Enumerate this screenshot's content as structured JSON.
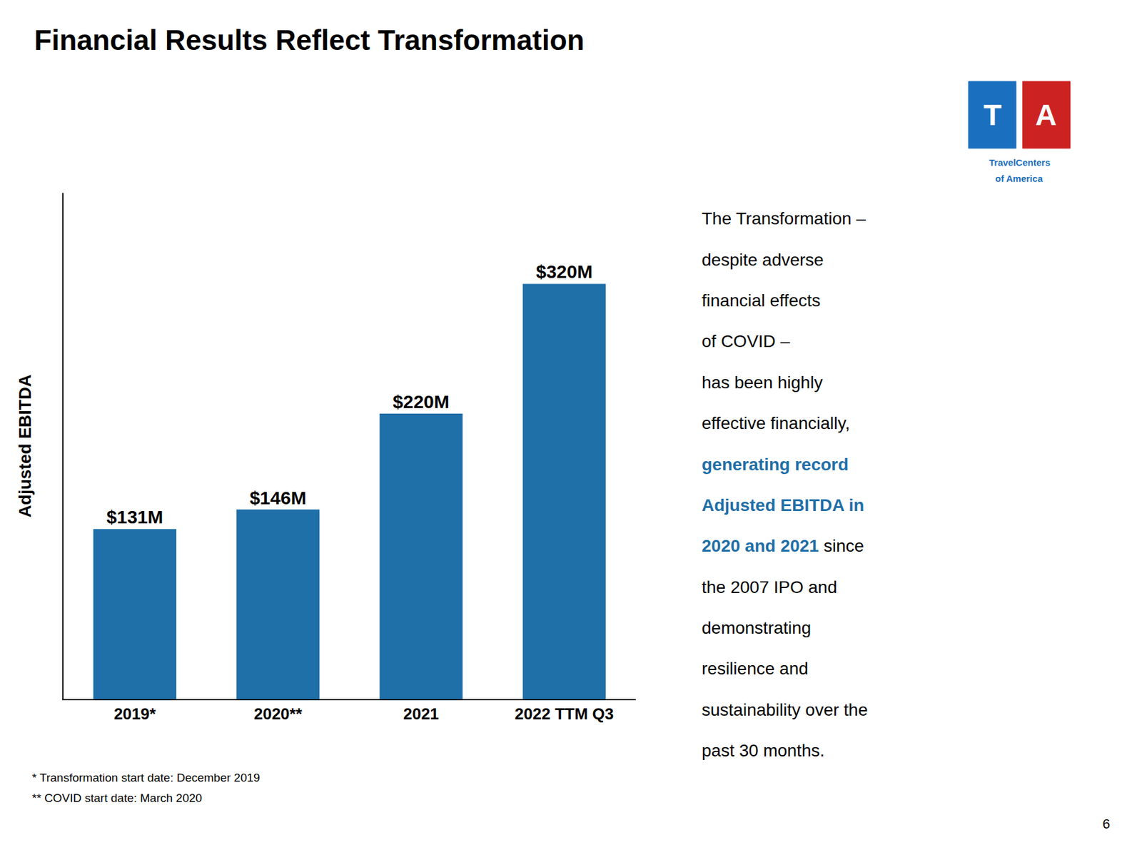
{
  "chart_data": {
    "type": "bar",
    "title": "Financial Results Reflect Transformation",
    "ylabel": "Adjusted EBITDA",
    "categories": [
      "2019*",
      "2020**",
      "2021",
      "2022 TTM Q3"
    ],
    "values": [
      131,
      146,
      220,
      320
    ],
    "value_labels": [
      "$131M",
      "$146M",
      "$220M",
      "$320M"
    ],
    "data_labels": true,
    "color": "#1F6FA8",
    "ylim": [
      0,
      390
    ],
    "yticks": [],
    "tick_labels": "x",
    "grid": false,
    "footnotes": [
      "* Transformation start date: December 2019",
      "** COVID start date: March 2020"
    ],
    "page_number": "6",
    "side_text": [
      [
        {
          "text": "The Transformation –"
        }
      ],
      [
        {
          "text": "despite adverse"
        }
      ],
      [
        {
          "text": "financial effects"
        }
      ],
      [
        {
          "text": "of COVID –"
        }
      ],
      [
        {
          "text": "has been highly"
        }
      ],
      [
        {
          "text": "effective financially,"
        }
      ],
      [
        {
          "text": "generating record",
          "color": "#1F6FA8"
        }
      ],
      [
        {
          "text": "Adjusted EBITDA in",
          "color": "#1F6FA8"
        }
      ],
      [
        {
          "text": "2020 and 2021",
          "color": "#1F6FA8"
        },
        {
          "text": " since"
        }
      ],
      [
        {
          "text": "the 2007 IPO and"
        }
      ],
      [
        {
          "text": "demonstrating"
        }
      ],
      [
        {
          "text": "resilience and"
        }
      ],
      [
        {
          "text": "sustainability over the"
        }
      ],
      [
        {
          "text": "past 30 months."
        }
      ]
    ],
    "logo": {
      "letters": [
        {
          "text": "T",
          "color": "#1A6FBF"
        },
        {
          "text": "A",
          "color": "#CC2222"
        }
      ],
      "caption": [
        "TravelCenters",
        "of America"
      ],
      "color": "#1A6FBF"
    }
  }
}
